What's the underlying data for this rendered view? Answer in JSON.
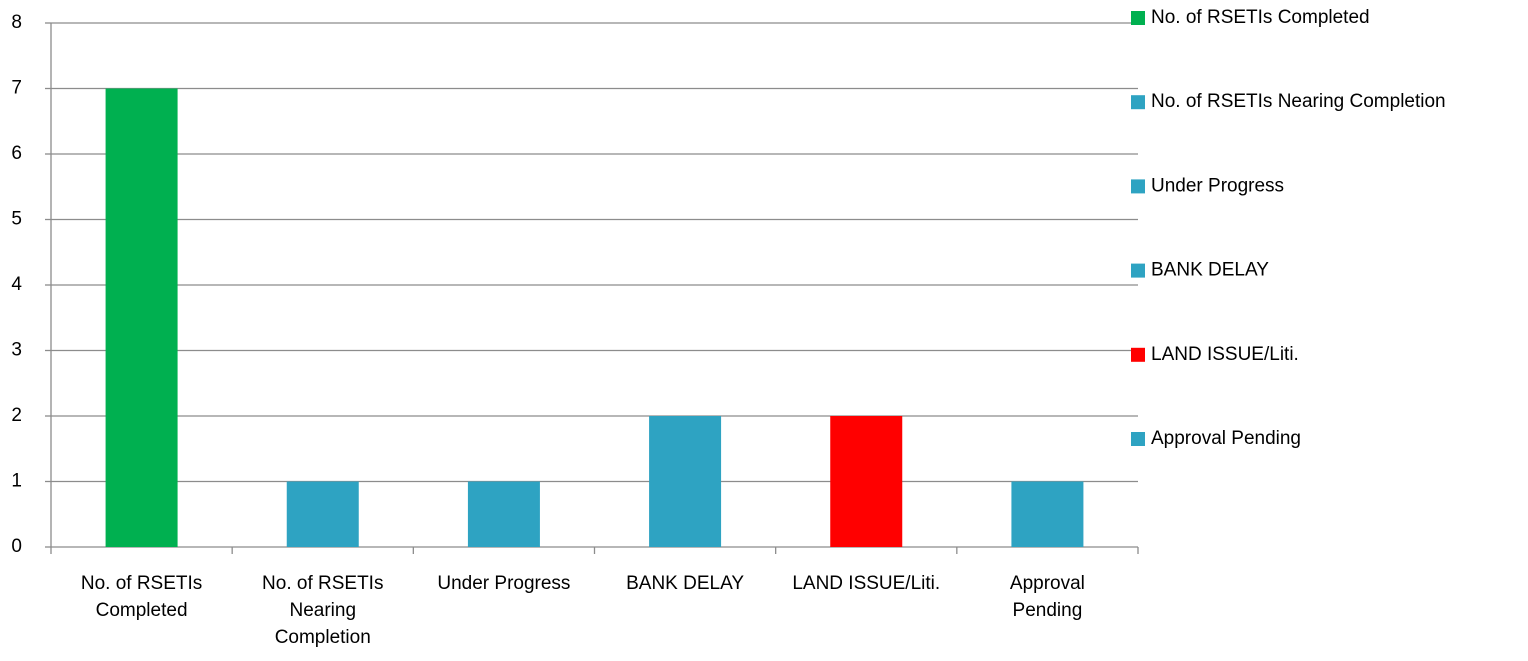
{
  "chart_data": {
    "type": "bar",
    "categories": [
      "No. of RSETIs Completed",
      "No. of RSETIs Nearing Completion",
      "Under Progress",
      "BANK DELAY",
      "LAND ISSUE/Liti.",
      "Approval Pending"
    ],
    "values": [
      7,
      1,
      1,
      2,
      2,
      1
    ],
    "colors": [
      "#00b050",
      "#2ea3c2",
      "#2ea3c2",
      "#2ea3c2",
      "#ff0000",
      "#2ea3c2"
    ],
    "ylim": [
      0,
      8
    ],
    "yticks": [
      0,
      1,
      2,
      3,
      4,
      5,
      6,
      7,
      8
    ],
    "grid": true,
    "legend": "right"
  }
}
